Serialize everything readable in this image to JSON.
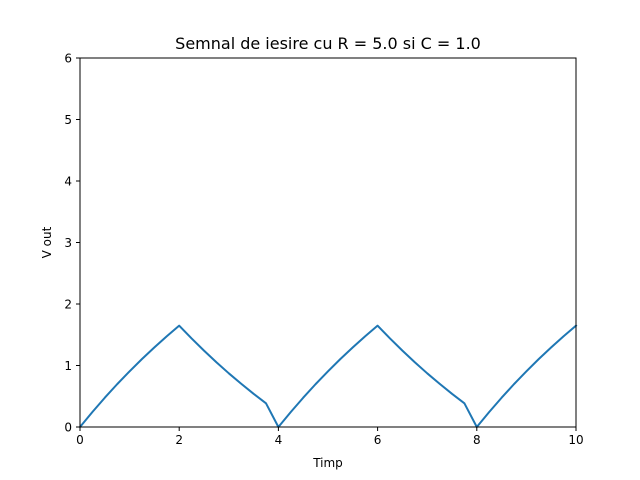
{
  "chart_data": {
    "type": "line",
    "title": "Semnal de iesire cu R = 5.0 si C = 1.0",
    "xlabel": "Timp",
    "ylabel": "V out",
    "xlim": [
      0,
      10
    ],
    "ylim": [
      0,
      6
    ],
    "xticks": [
      "0",
      "2",
      "4",
      "6",
      "8",
      "10"
    ],
    "yticks": [
      "0",
      "1",
      "2",
      "3",
      "4",
      "5",
      "6"
    ],
    "grid": false,
    "series": [
      {
        "color": "#1f77b4",
        "x": [
          0,
          0.25,
          0.5,
          0.75,
          1.0,
          1.25,
          1.5,
          1.75,
          2.0,
          2.25,
          2.5,
          2.75,
          3.0,
          3.25,
          3.5,
          3.75,
          4.0,
          4.25,
          4.5,
          4.75,
          5.0,
          5.25,
          5.5,
          5.75,
          6.0,
          6.25,
          6.5,
          6.75,
          7.0,
          7.25,
          7.5,
          7.75,
          8.0,
          8.25,
          8.5,
          8.75,
          9.0,
          9.25,
          9.5,
          9.75,
          10.0
        ],
        "y": [
          0,
          0.244,
          0.476,
          0.697,
          0.906,
          1.106,
          1.295,
          1.476,
          1.648,
          1.44,
          1.242,
          1.053,
          0.873,
          0.703,
          0.54,
          0.385,
          0,
          0.244,
          0.476,
          0.697,
          0.906,
          1.106,
          1.295,
          1.476,
          1.648,
          1.44,
          1.242,
          1.053,
          0.873,
          0.703,
          0.54,
          0.385,
          0,
          0.244,
          0.476,
          0.697,
          0.906,
          1.106,
          1.295,
          1.476,
          1.648
        ]
      }
    ]
  }
}
